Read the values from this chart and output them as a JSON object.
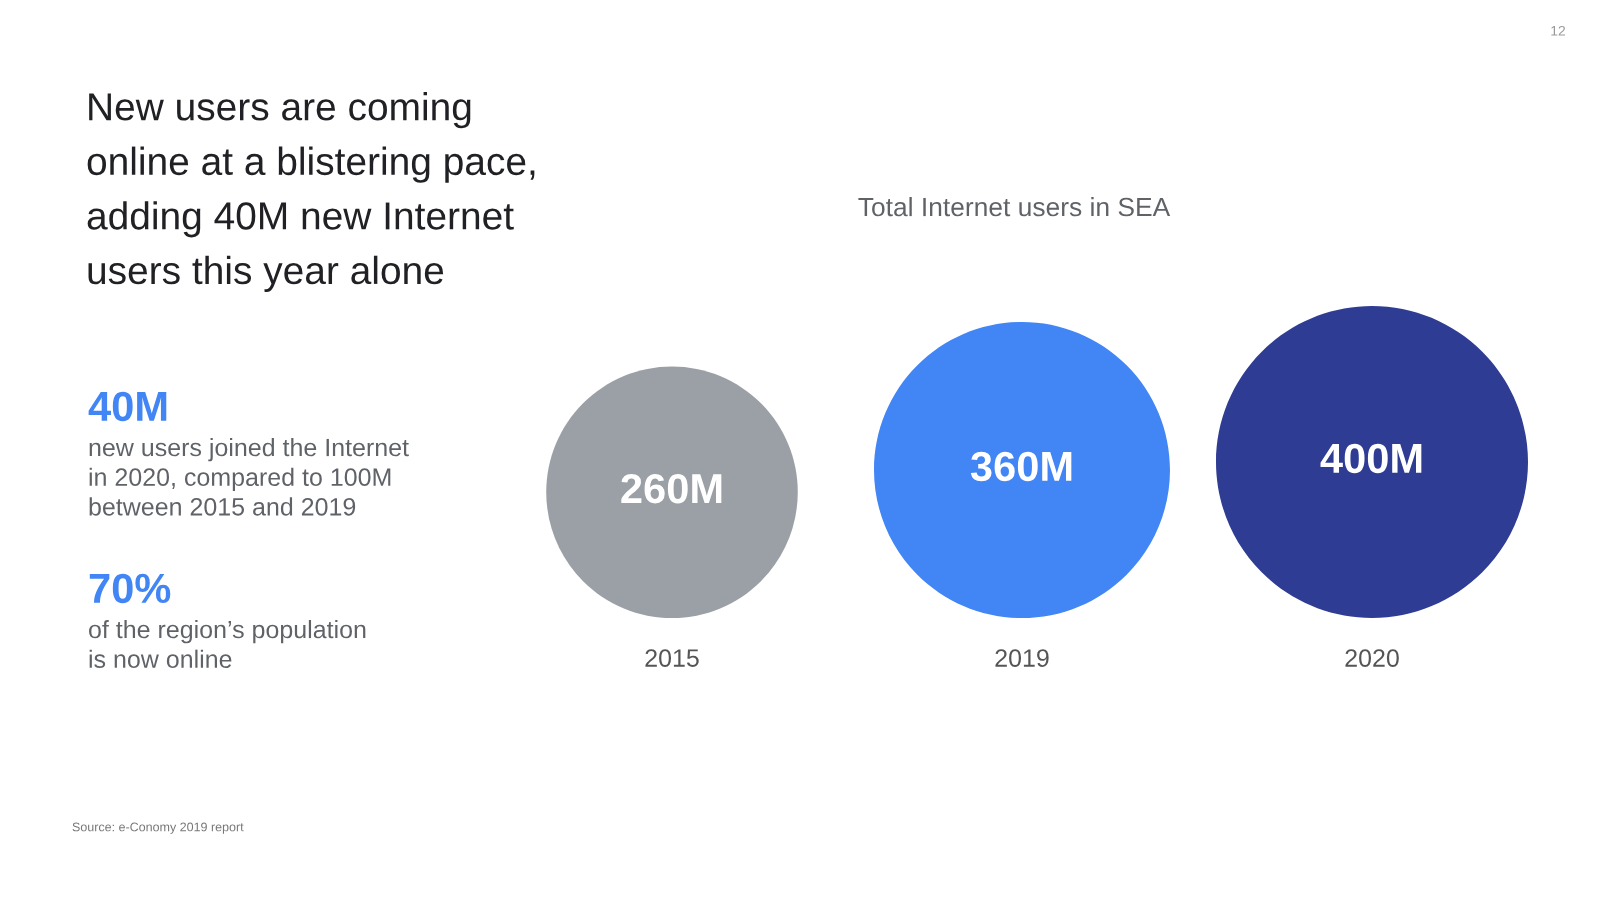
{
  "chart_data": [
    {
      "type": "other",
      "title": "New users are coming online at a blistering pace, adding 40M new Internet users this year alone",
      "annotations": [
        "40M",
        "new users joined the Internet in 2020, compared to 100M between 2015 and 2019",
        "70%",
        "of the region’s population is now online",
        "Source: e-Conomy 2019 report",
        "12"
      ]
    },
    {
      "type": "other",
      "title": "Total Internet users in SEA",
      "categories": [
        "2015",
        "2019",
        "2020"
      ],
      "values": [
        260,
        360,
        400
      ],
      "value_labels": [
        "260M",
        "360M",
        "400M"
      ],
      "colors": [
        "#9aa0a6",
        "#4285f4",
        "#2e3c94"
      ]
    }
  ]
}
